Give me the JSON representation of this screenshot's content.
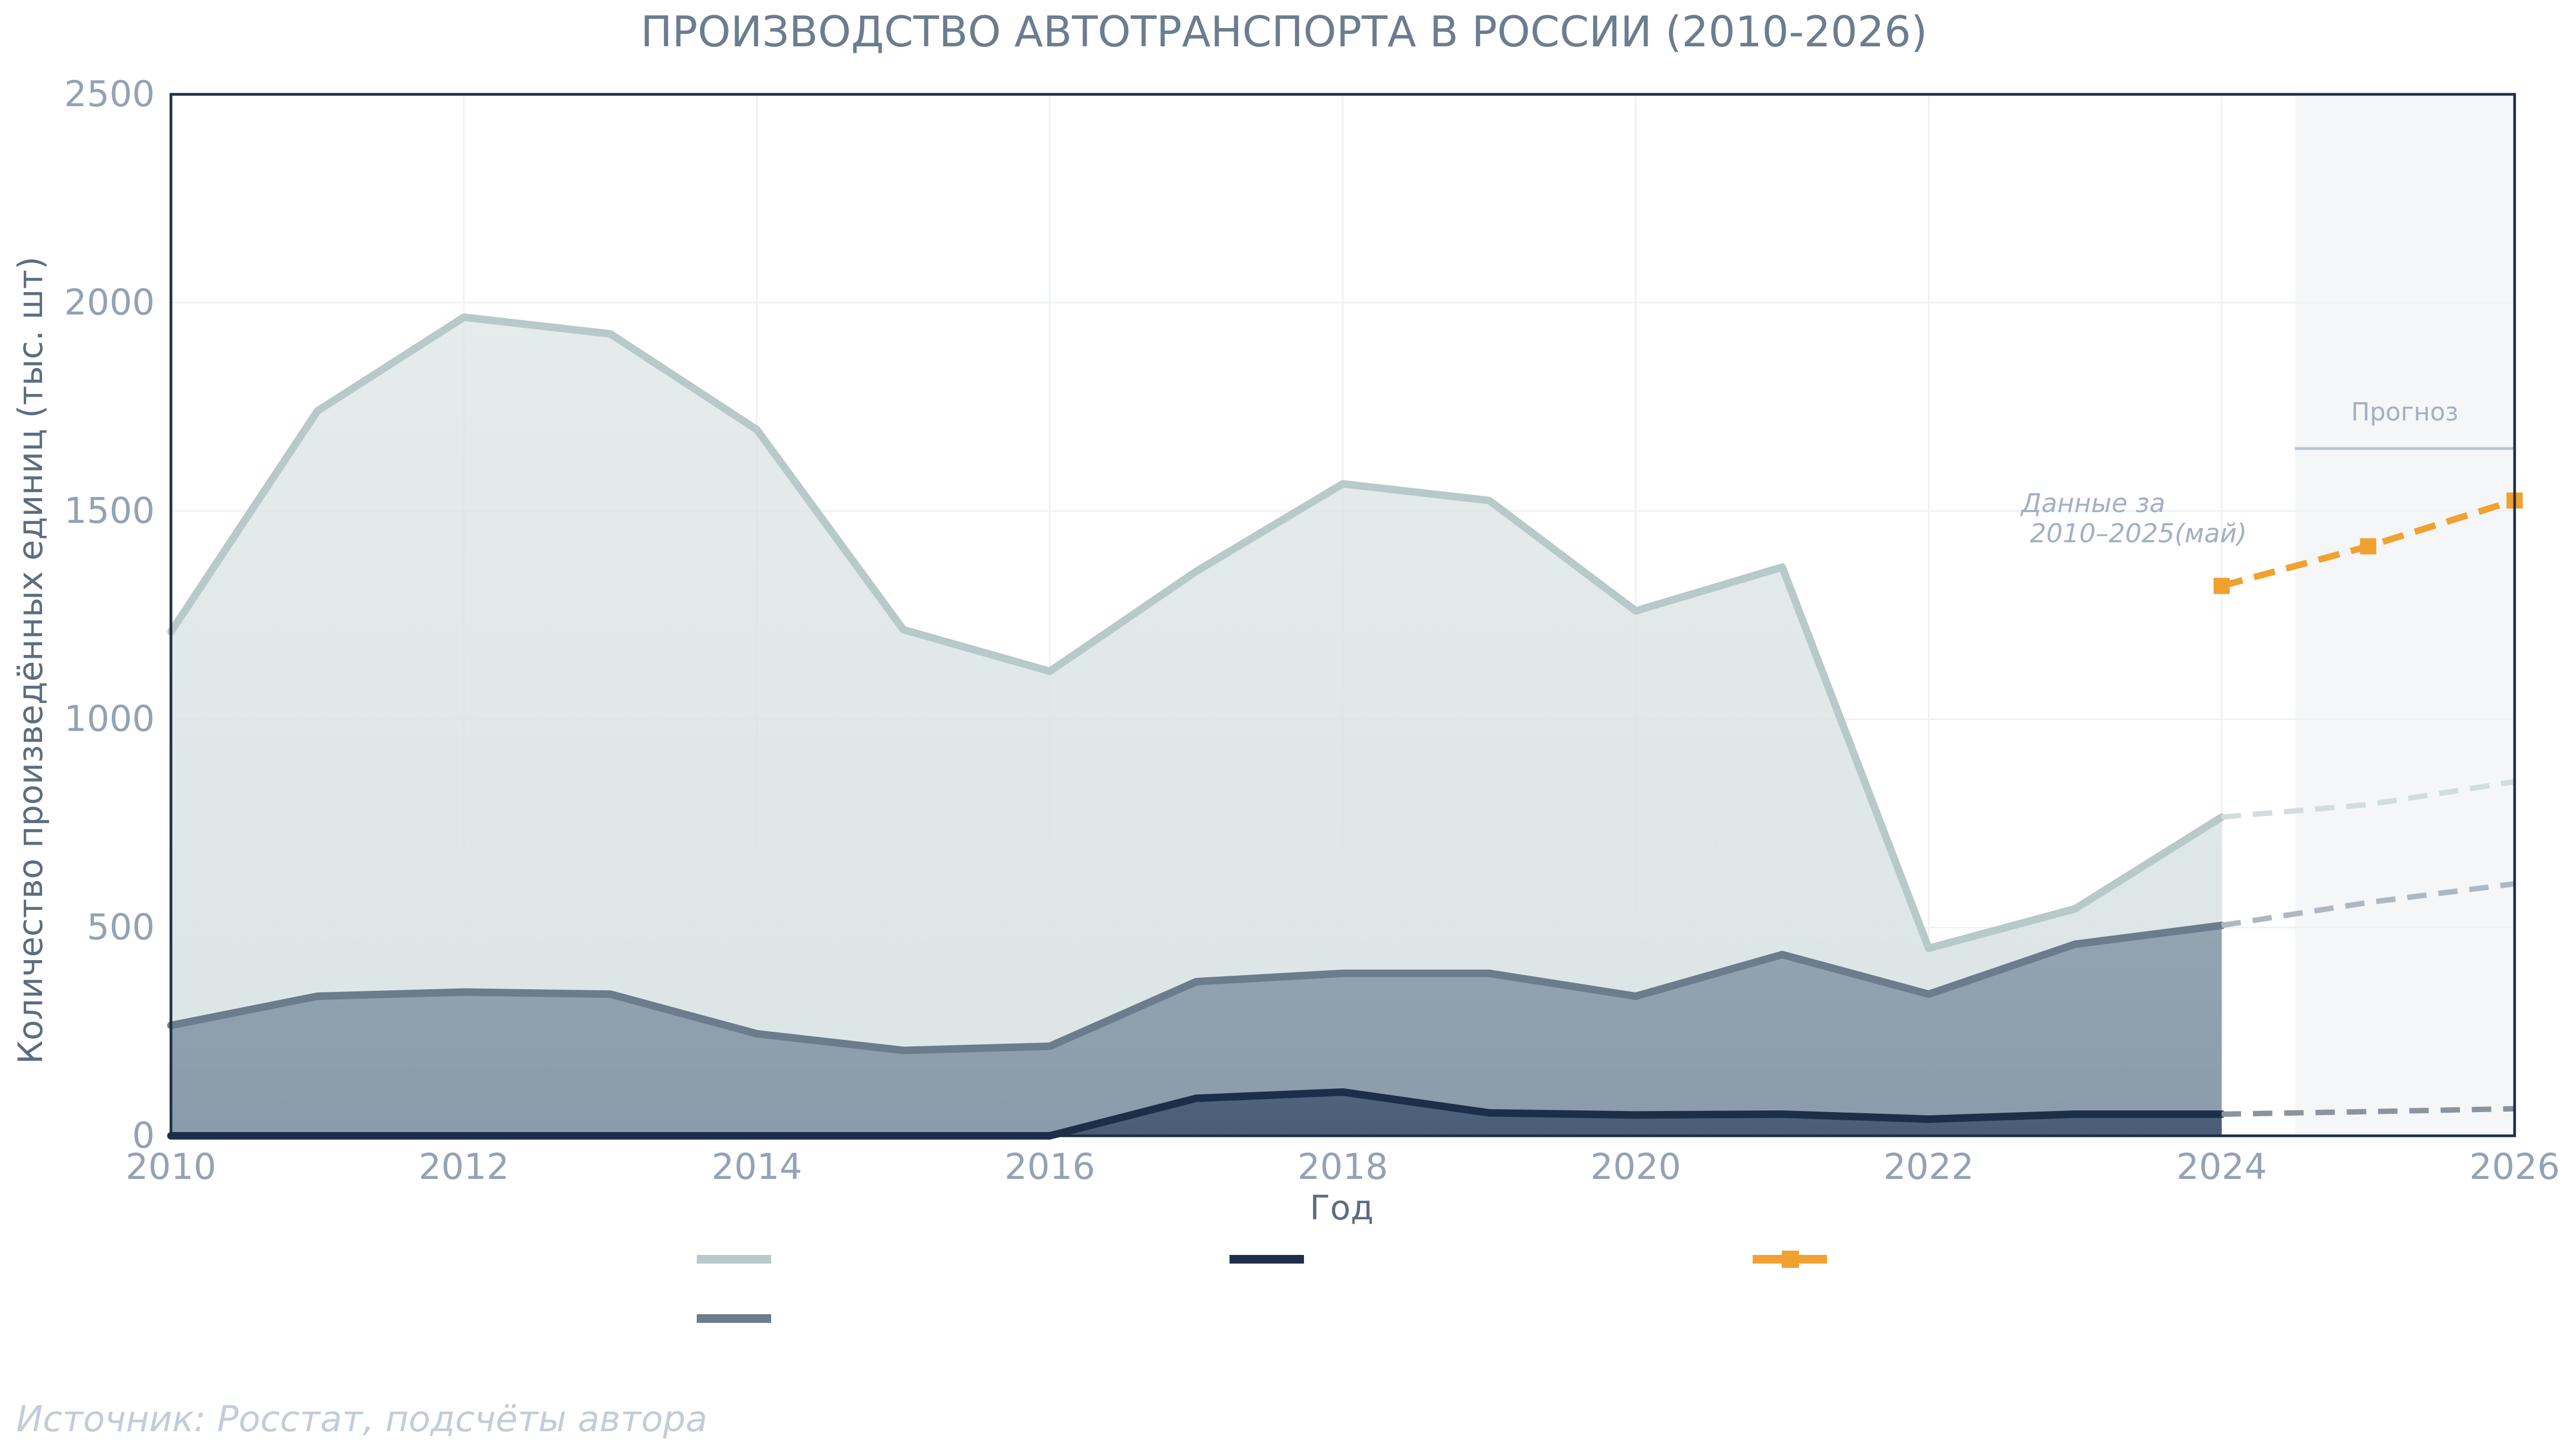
{
  "chart_data": {
    "type": "area",
    "title": "ПРОИЗВОДСТВО АВТОТРАНСПОРТА В РОССИИ (2010-2026)",
    "xlabel": "Год",
    "ylabel": "Количество произведённых единиц (тыс. шт)",
    "xlim": [
      2010,
      2026
    ],
    "ylim": [
      0,
      2500
    ],
    "x_ticks": [
      "2010",
      "2012",
      "2014",
      "2016",
      "2018",
      "2020",
      "2022",
      "2024",
      "2026"
    ],
    "y_ticks": [
      "0",
      "500",
      "1000",
      "1500",
      "2000",
      "2500"
    ],
    "grid": true,
    "forecast_region": [
      2024.5,
      2026
    ],
    "forecast_label": "Прогноз",
    "annotation": [
      "Данные за",
      "2010–2025(май)"
    ],
    "source": "Источник: Росстат, подсчёты автора",
    "legend_position": "bottom",
    "series": [
      {
        "color": "#b7c9c8",
        "fill": "#dbe5e5",
        "x": [
          2010,
          2011,
          2012,
          2013,
          2014,
          2015,
          2016,
          2017,
          2018,
          2019,
          2020,
          2021,
          2022,
          2023,
          2024
        ],
        "values": [
          1210,
          1740,
          1965,
          1925,
          1695,
          1215,
          1115,
          1355,
          1565,
          1525,
          1260,
          1365,
          450,
          545,
          765
        ],
        "forecast_x": [
          2024,
          2025,
          2026
        ],
        "forecast_values": [
          765,
          795,
          850
        ],
        "forecast_color": "#d4dddd"
      },
      {
        "color": "#6b7c8c",
        "fill": "#8a9cab",
        "x": [
          2010,
          2011,
          2012,
          2013,
          2014,
          2015,
          2016,
          2017,
          2018,
          2019,
          2020,
          2021,
          2022,
          2023,
          2024
        ],
        "values": [
          265,
          335,
          345,
          340,
          245,
          205,
          215,
          370,
          390,
          390,
          335,
          435,
          340,
          460,
          505
        ],
        "forecast_x": [
          2024,
          2025,
          2026
        ],
        "forecast_values": [
          505,
          560,
          605
        ],
        "forecast_color": "#aeb8c2"
      },
      {
        "color": "#1d2e4a",
        "fill": "#4a5d78",
        "x": [
          2010,
          2011,
          2012,
          2013,
          2014,
          2015,
          2016,
          2017,
          2018,
          2019,
          2020,
          2021,
          2022,
          2023,
          2024
        ],
        "values": [
          0,
          0,
          0,
          0,
          0,
          0,
          0,
          90,
          105,
          55,
          50,
          52,
          40,
          52,
          52
        ],
        "forecast_x": [
          2024,
          2025,
          2026
        ],
        "forecast_values": [
          52,
          58,
          65
        ],
        "forecast_color": "#8a949f"
      },
      {
        "color": "#f0a12f",
        "x": [
          2024,
          2025,
          2026
        ],
        "values": [
          1320,
          1415,
          1525
        ],
        "dashed": true,
        "marker": "square"
      }
    ]
  }
}
